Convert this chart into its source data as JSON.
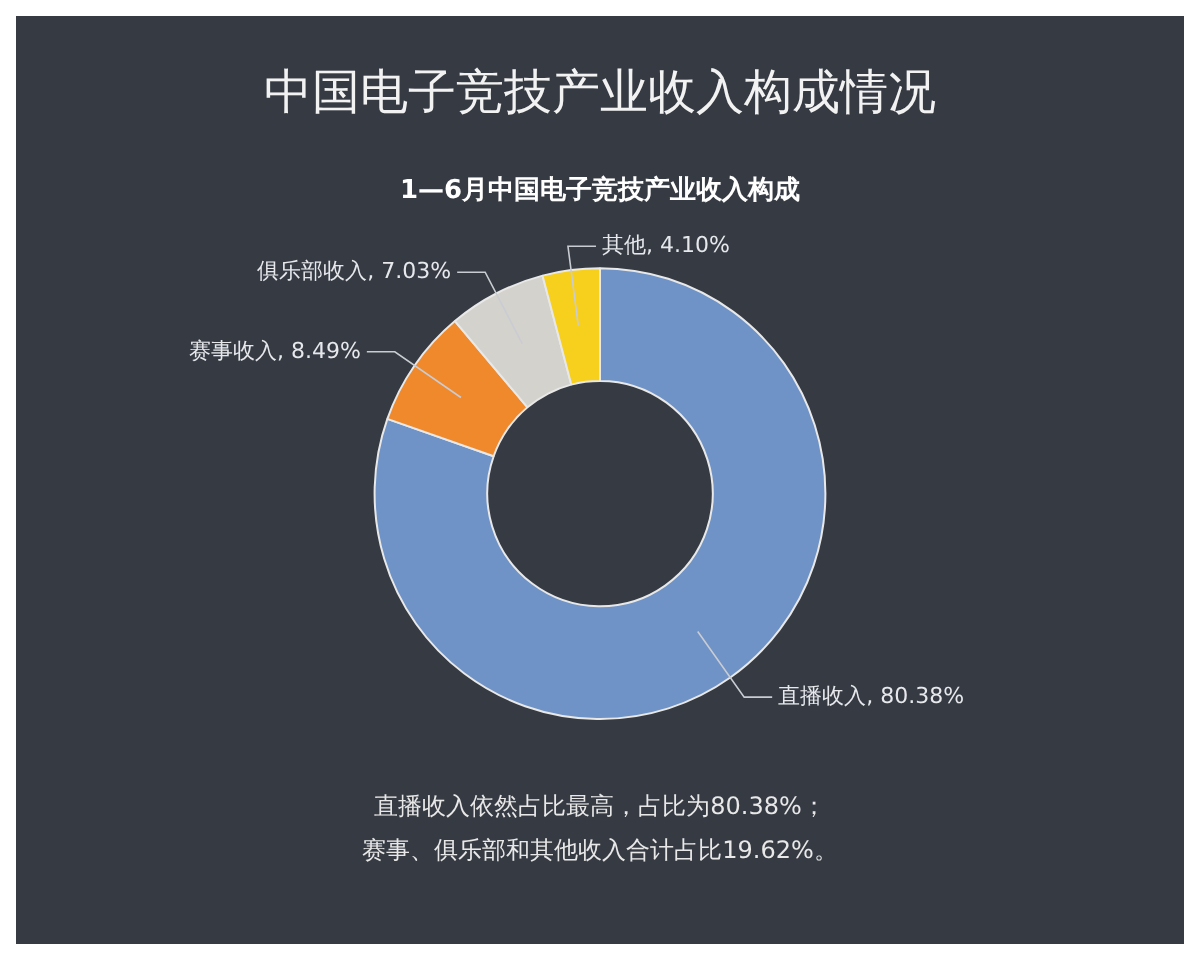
{
  "chart_data": {
    "type": "donut",
    "title": "中国电子竞技产业收入构成情况",
    "subtitle": "1—6月中国电子竞技产业收入构成",
    "categories": [
      "直播收入",
      "赛事收入",
      "俱乐部收入",
      "其他"
    ],
    "values": [
      80.38,
      8.49,
      7.03,
      4.1
    ],
    "colors": [
      "#6f93c6",
      "#f0892c",
      "#d4d2cc",
      "#f7cf1d"
    ],
    "value_labels": [
      "80.38%",
      "8.49%",
      "7.03%",
      "4.10%"
    ],
    "legend": false,
    "annotations": [
      "直播收入依然占比最高，占比为80.38%；",
      "赛事、俱乐部和其他收入合计占比19.62%。"
    ]
  }
}
